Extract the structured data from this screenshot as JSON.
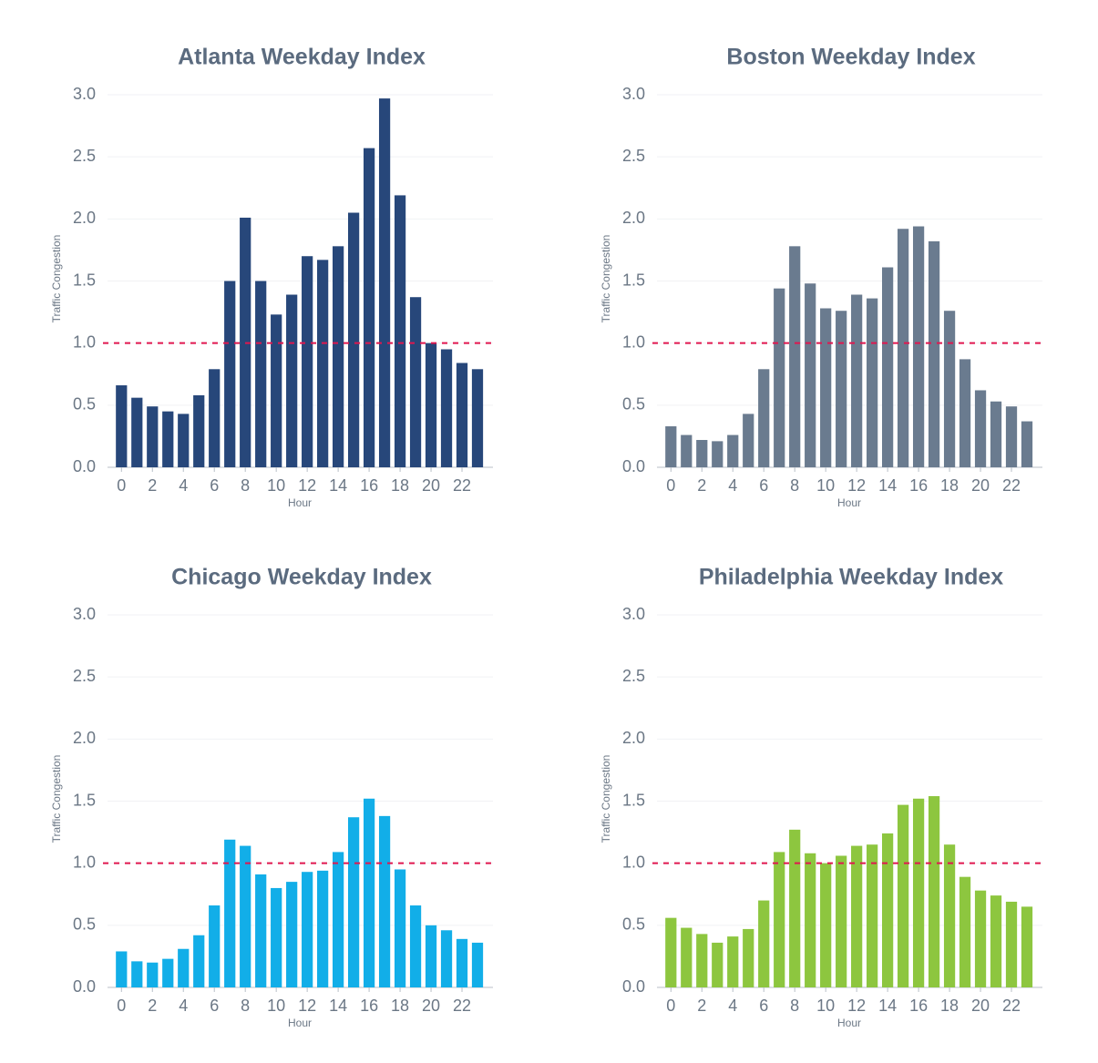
{
  "chart_data": [
    {
      "type": "bar",
      "title": "Atlanta Weekday Index",
      "xlabel": "Hour",
      "ylabel": "Traffic Congestion",
      "color": "#27477a",
      "x": [
        0,
        1,
        2,
        3,
        4,
        5,
        6,
        7,
        8,
        9,
        10,
        11,
        12,
        13,
        14,
        15,
        16,
        17,
        18,
        19,
        20,
        21,
        22,
        23
      ],
      "values": [
        0.66,
        0.56,
        0.49,
        0.45,
        0.43,
        0.58,
        0.79,
        1.5,
        2.01,
        1.5,
        1.23,
        1.39,
        1.7,
        1.67,
        1.78,
        2.05,
        2.57,
        2.97,
        2.19,
        1.37,
        1.0,
        0.95,
        0.84,
        0.79
      ],
      "xlim": [
        -0.9,
        24
      ],
      "ylim": [
        0,
        3.0
      ],
      "xticks": [
        0,
        2,
        4,
        6,
        8,
        10,
        12,
        14,
        16,
        18,
        20,
        22
      ],
      "yticks": [
        {
          "value": 0,
          "label": "0.0"
        },
        {
          "value": 0.5,
          "label": "0.5"
        },
        {
          "value": 1,
          "label": "1.0"
        },
        {
          "value": 1.5,
          "label": "1.5"
        },
        {
          "value": 2,
          "label": "2.0"
        },
        {
          "value": 2.5,
          "label": "2.5"
        },
        {
          "value": 3,
          "label": "3.0"
        }
      ],
      "reference_line": 1,
      "grid": true
    },
    {
      "type": "bar",
      "title": "Boston Weekday Index",
      "xlabel": "Hour",
      "ylabel": "Traffic Congestion",
      "color": "#6a7b8f",
      "x": [
        0,
        1,
        2,
        3,
        4,
        5,
        6,
        7,
        8,
        9,
        10,
        11,
        12,
        13,
        14,
        15,
        16,
        17,
        18,
        19,
        20,
        21,
        22,
        23
      ],
      "values": [
        0.33,
        0.26,
        0.22,
        0.21,
        0.26,
        0.43,
        0.79,
        1.44,
        1.78,
        1.48,
        1.28,
        1.26,
        1.39,
        1.36,
        1.61,
        1.92,
        1.94,
        1.82,
        1.26,
        0.87,
        0.62,
        0.53,
        0.49,
        0.37
      ],
      "xlim": [
        -0.9,
        24
      ],
      "ylim": [
        0,
        3.0
      ],
      "xticks": [
        0,
        2,
        4,
        6,
        8,
        10,
        12,
        14,
        16,
        18,
        20,
        22
      ],
      "yticks": [
        {
          "value": 0,
          "label": "0.0"
        },
        {
          "value": 0.5,
          "label": "0.5"
        },
        {
          "value": 1,
          "label": "1.0"
        },
        {
          "value": 1.5,
          "label": "1.5"
        },
        {
          "value": 2,
          "label": "2.0"
        },
        {
          "value": 2.5,
          "label": "2.5"
        },
        {
          "value": 3,
          "label": "3.0"
        }
      ],
      "reference_line": 1,
      "grid": true
    },
    {
      "type": "bar",
      "title": "Chicago Weekday Index",
      "xlabel": "Hour",
      "ylabel": "Traffic Congestion",
      "color": "#12aee8",
      "x": [
        0,
        1,
        2,
        3,
        4,
        5,
        6,
        7,
        8,
        9,
        10,
        11,
        12,
        13,
        14,
        15,
        16,
        17,
        18,
        19,
        20,
        21,
        22,
        23
      ],
      "values": [
        0.29,
        0.21,
        0.2,
        0.23,
        0.31,
        0.42,
        0.66,
        1.19,
        1.14,
        0.91,
        0.8,
        0.85,
        0.93,
        0.94,
        1.09,
        1.37,
        1.52,
        1.38,
        0.95,
        0.66,
        0.5,
        0.46,
        0.39,
        0.36
      ],
      "xlim": [
        -0.9,
        24
      ],
      "ylim": [
        0,
        3.0
      ],
      "xticks": [
        0,
        2,
        4,
        6,
        8,
        10,
        12,
        14,
        16,
        18,
        20,
        22
      ],
      "yticks": [
        {
          "value": 0,
          "label": "0.0"
        },
        {
          "value": 0.5,
          "label": "0.5"
        },
        {
          "value": 1,
          "label": "1.0"
        },
        {
          "value": 1.5,
          "label": "1.5"
        },
        {
          "value": 2,
          "label": "2.0"
        },
        {
          "value": 2.5,
          "label": "2.5"
        },
        {
          "value": 3,
          "label": "3.0"
        }
      ],
      "reference_line": 1,
      "grid": true
    },
    {
      "type": "bar",
      "title": "Philadelphia Weekday Index",
      "xlabel": "Hour",
      "ylabel": "Traffic Congestion",
      "color": "#8dc63f",
      "x": [
        0,
        1,
        2,
        3,
        4,
        5,
        6,
        7,
        8,
        9,
        10,
        11,
        12,
        13,
        14,
        15,
        16,
        17,
        18,
        19,
        20,
        21,
        22,
        23
      ],
      "values": [
        0.56,
        0.48,
        0.43,
        0.36,
        0.41,
        0.47,
        0.7,
        1.09,
        1.27,
        1.08,
        1.0,
        1.06,
        1.14,
        1.15,
        1.24,
        1.47,
        1.52,
        1.54,
        1.15,
        0.89,
        0.78,
        0.74,
        0.69,
        0.65
      ],
      "xlim": [
        -0.9,
        24
      ],
      "ylim": [
        0,
        3.0
      ],
      "xticks": [
        0,
        2,
        4,
        6,
        8,
        10,
        12,
        14,
        16,
        18,
        20,
        22
      ],
      "yticks": [
        {
          "value": 0,
          "label": "0.0"
        },
        {
          "value": 0.5,
          "label": "0.5"
        },
        {
          "value": 1,
          "label": "1.0"
        },
        {
          "value": 1.5,
          "label": "1.5"
        },
        {
          "value": 2,
          "label": "2.0"
        },
        {
          "value": 2.5,
          "label": "2.5"
        },
        {
          "value": 3,
          "label": "3.0"
        }
      ],
      "reference_line": 1,
      "grid": true
    }
  ]
}
